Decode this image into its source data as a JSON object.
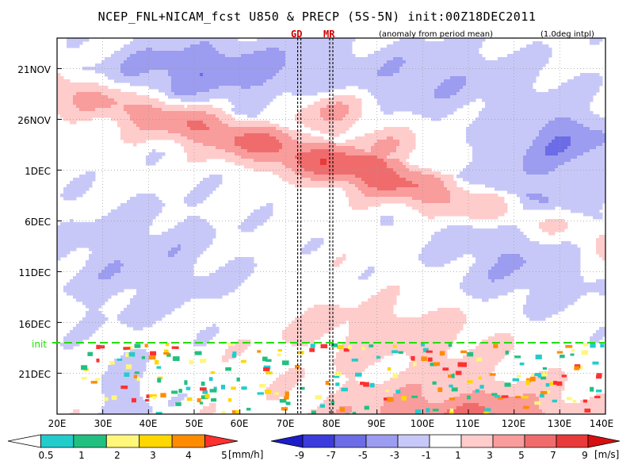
{
  "title": "NCEP_FNL+NICAM_fcst U850 & PRECP (5S-5N) init:00Z18DEC2011",
  "note_left": "(anomaly from period mean)",
  "note_right": "(1.0deg intpl)",
  "markers": [
    {
      "label": "GD",
      "lon": 73
    },
    {
      "label": "MR",
      "lon": 80
    }
  ],
  "init_label": "init",
  "colors": {
    "init_line": "#22dd00",
    "marker_line": "#000000",
    "marker_text": "#d00000"
  },
  "chart_data": {
    "type": "heatmap",
    "title": "NCEP_FNL+NICAM_fcst U850 & PRECP (5S-5N) init:00Z18DEC2011",
    "xlim": [
      20,
      140
    ],
    "ylim": [
      "18NOV2011",
      "27DEC2011"
    ],
    "x_ticks": [
      "20E",
      "30E",
      "40E",
      "50E",
      "60E",
      "70E",
      "80E",
      "90E",
      "100E",
      "110E",
      "120E",
      "130E",
      "140E"
    ],
    "y_ticks": [
      "21NOV",
      "26NOV",
      "1DEC",
      "6DEC",
      "11DEC",
      "16DEC",
      "21DEC"
    ],
    "init_time": "00Z18DEC2011",
    "grid": true,
    "u850_colorbar": {
      "levels": [
        -9,
        -7,
        -5,
        -3,
        -1,
        1,
        3,
        5,
        7,
        9
      ],
      "colors": [
        "#1c1cc8",
        "#3c3cdc",
        "#6c6ce6",
        "#9c9cf0",
        "#c8c8f8",
        "#ffffff",
        "#ffcccc",
        "#f99c9c",
        "#f06c6c",
        "#e83a3a",
        "#d61010"
      ],
      "unit": "[m/s]"
    },
    "precip_colorbar": {
      "levels": [
        0.5,
        1,
        2,
        3,
        4,
        5
      ],
      "colors": [
        "#ffffff",
        "#22cccc",
        "#22c080",
        "#fff77a",
        "#ffd700",
        "#ff8c00",
        "#ff3030"
      ],
      "unit": "[mm/h]"
    },
    "features": [
      {
        "name": "eastward propagating westerly anomaly",
        "from": [
          "20E",
          "21NOV"
        ],
        "to": [
          "140E",
          "6DEC"
        ],
        "sign": "positive"
      },
      {
        "name": "easterly anomaly",
        "region": "30E-75E",
        "time": "19NOV-23NOV",
        "sign": "negative"
      },
      {
        "name": "forecast westerly anomaly",
        "region": "70E-140E",
        "time": "18DEC-27DEC",
        "sign": "positive"
      }
    ]
  }
}
